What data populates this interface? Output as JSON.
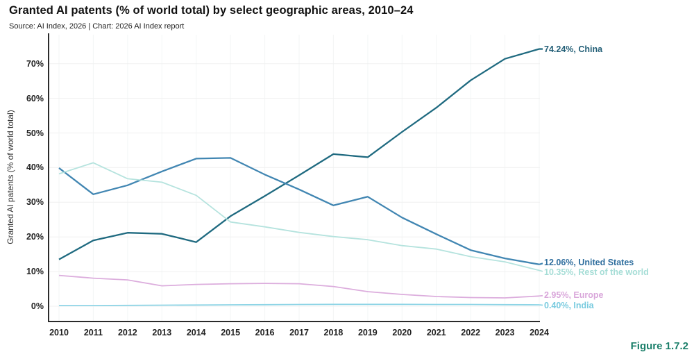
{
  "header": {
    "title": "Granted AI patents (% of world total) by select geographic areas, 2010–24",
    "source_line": "Source: AI Index, 2026 | Chart: 2026 AI Index report"
  },
  "figure_label": "Figure 1.7.2",
  "colors": {
    "figure_label": "#1b7f6a",
    "axis": "#2b2b2b",
    "grid_horizontal": "#f0f0f0",
    "grid_vertical": "#f3f6f6"
  },
  "chart_data": {
    "type": "line",
    "title": "Granted AI patents (% of world total) by select geographic areas, 2010–24",
    "x": [
      2010,
      2011,
      2012,
      2013,
      2014,
      2015,
      2016,
      2017,
      2018,
      2019,
      2020,
      2021,
      2022,
      2023,
      2024
    ],
    "xlabel": "",
    "ylabel": "Granted AI patents (% of world total)",
    "ylim": [
      0,
      78
    ],
    "yticks": [
      0,
      10,
      20,
      30,
      40,
      50,
      60,
      70
    ],
    "ytick_suffix": "%",
    "grid": true,
    "legend_position": "line-end-labels",
    "series": [
      {
        "name": "China",
        "end_label": "74.24%, China",
        "color": "#1f6a80",
        "label_color": "#235f77",
        "stroke_width": 2.3,
        "values": [
          13.5,
          19.0,
          21.2,
          20.9,
          18.5,
          26.0,
          31.8,
          37.8,
          43.9,
          43.0,
          50.3,
          57.3,
          65.2,
          71.4,
          74.24
        ]
      },
      {
        "name": "United States",
        "end_label": "12.06%, United States",
        "color": "#4186b2",
        "label_color": "#2f6e9e",
        "stroke_width": 2.3,
        "values": [
          39.9,
          32.3,
          34.9,
          38.9,
          42.6,
          42.8,
          38.0,
          33.7,
          29.1,
          31.6,
          25.6,
          20.8,
          16.2,
          13.8,
          12.06
        ]
      },
      {
        "name": "Rest of the world",
        "end_label": "10.35%, Rest of the world",
        "color": "#b5e3de",
        "label_color": "#a5ddd6",
        "stroke_width": 1.8,
        "values": [
          38.2,
          41.4,
          36.8,
          35.8,
          32.0,
          24.3,
          22.9,
          21.3,
          20.1,
          19.2,
          17.5,
          16.5,
          14.3,
          12.8,
          10.35
        ]
      },
      {
        "name": "Europe",
        "end_label": "2.95%, Europe",
        "color": "#dcaddd",
        "label_color": "#d9a6da",
        "stroke_width": 1.8,
        "values": [
          8.9,
          8.1,
          7.6,
          5.9,
          6.3,
          6.5,
          6.6,
          6.5,
          5.7,
          4.2,
          3.4,
          2.8,
          2.5,
          2.4,
          2.95
        ]
      },
      {
        "name": "India",
        "end_label": "0.40%, India",
        "color": "#8fd5e6",
        "label_color": "#79cbdf",
        "stroke_width": 1.8,
        "values": [
          0.2,
          0.2,
          0.25,
          0.3,
          0.35,
          0.4,
          0.45,
          0.5,
          0.55,
          0.55,
          0.55,
          0.5,
          0.5,
          0.45,
          0.4
        ]
      }
    ]
  }
}
